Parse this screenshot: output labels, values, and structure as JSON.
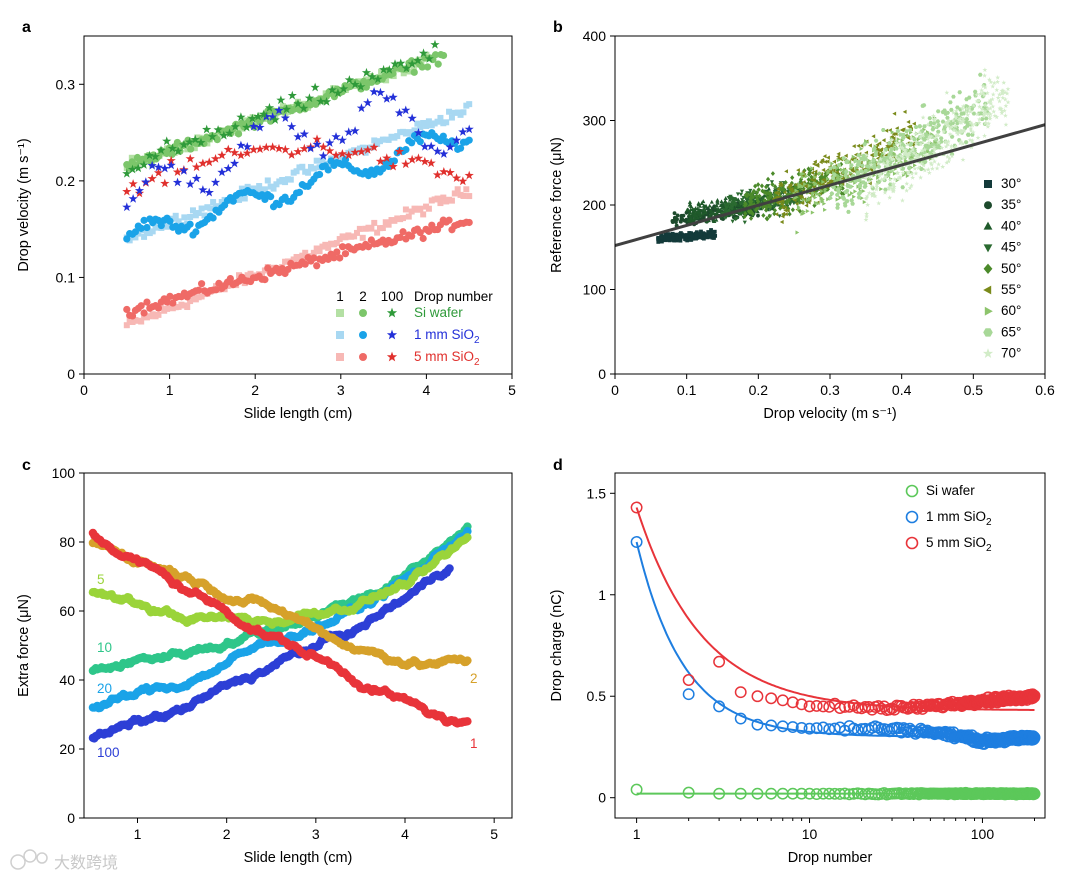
{
  "figure": {
    "watermark": "大数跨境",
    "colors": {
      "si_light": "#b4e0a4",
      "si_mid": "#7cc66b",
      "si_dark": "#2f9a3a",
      "sio2_1mm_light": "#a8d8f2",
      "sio2_1mm_mid": "#1aa3e8",
      "sio2_1mm_dark": "#2330d8",
      "sio2_5mm_light": "#f7b8b5",
      "sio2_5mm_mid": "#ef6a66",
      "sio2_5mm_dark": "#e0302d"
    }
  },
  "chart_data": [
    {
      "panel": "a",
      "type": "scatter",
      "xlabel": "Slide length (cm)",
      "ylabel": "Drop velocity (m s⁻¹)",
      "xlim": [
        0,
        5
      ],
      "ylim": [
        0,
        0.35
      ],
      "xticks": [
        0,
        1,
        2,
        3,
        4,
        5
      ],
      "yticks": [
        0,
        0.1,
        0.2,
        0.3
      ],
      "legend": {
        "header": [
          "1",
          "2",
          "100",
          "Drop number"
        ],
        "rows": [
          {
            "label": "Si wafer",
            "color": "#2f9a3a"
          },
          {
            "label": "1 mm SiO",
            "sub": "2",
            "color": "#2330d8"
          },
          {
            "label": "5 mm SiO",
            "sub": "2",
            "color": "#e0302d"
          }
        ],
        "placement": "bottom-right"
      },
      "series": [
        {
          "substrate": "Si wafer",
          "drop": "1",
          "marker": "square",
          "color": "#b4e0a4",
          "x": [
            0.5,
            4.0
          ],
          "y": [
            0.215,
            0.325
          ]
        },
        {
          "substrate": "Si wafer",
          "drop": "2",
          "marker": "circle",
          "color": "#7cc66b",
          "x": [
            0.5,
            4.2
          ],
          "y": [
            0.215,
            0.33
          ]
        },
        {
          "substrate": "Si wafer",
          "drop": "100",
          "marker": "star",
          "color": "#2f9a3a",
          "x": [
            0.5,
            4.1
          ],
          "y": [
            0.215,
            0.33
          ]
        },
        {
          "substrate": "1 mm SiO2",
          "drop": "1",
          "marker": "square",
          "color": "#a8d8f2",
          "x": [
            0.5,
            4.5
          ],
          "y": [
            0.14,
            0.275
          ]
        },
        {
          "substrate": "1 mm SiO2",
          "drop": "2",
          "marker": "circle",
          "color": "#1aa3e8",
          "x": [
            0.5,
            4.5
          ],
          "y": [
            0.14,
            0.25
          ]
        },
        {
          "substrate": "1 mm SiO2",
          "drop": "100",
          "marker": "star",
          "color": "#2330d8",
          "x": [
            0.5,
            4.5
          ],
          "y": [
            0.17,
            0.25
          ]
        },
        {
          "substrate": "5 mm SiO2",
          "drop": "1",
          "marker": "square",
          "color": "#f7b8b5",
          "x": [
            0.5,
            4.5
          ],
          "y": [
            0.05,
            0.19
          ]
        },
        {
          "substrate": "5 mm SiO2",
          "drop": "2",
          "marker": "circle",
          "color": "#ef6a66",
          "x": [
            0.5,
            4.5
          ],
          "y": [
            0.065,
            0.16
          ]
        },
        {
          "substrate": "5 mm SiO2",
          "drop": "100",
          "marker": "star",
          "color": "#e0302d",
          "x": [
            0.5,
            4.5
          ],
          "y": [
            0.19,
            0.21
          ]
        }
      ]
    },
    {
      "panel": "b",
      "type": "scatter",
      "xlabel": "Drop velocity (m s⁻¹)",
      "ylabel": "Reference force (μN)",
      "xlim": [
        0,
        0.6
      ],
      "ylim": [
        0,
        400
      ],
      "xticks": [
        0,
        0.1,
        0.2,
        0.3,
        0.4,
        0.5,
        0.6
      ],
      "yticks": [
        0,
        100,
        200,
        300,
        400
      ],
      "fit_line": {
        "x": [
          0,
          0.6
        ],
        "y": [
          152,
          295
        ],
        "color": "#404040"
      },
      "legend": {
        "placement": "right",
        "entries": [
          {
            "label": "30°",
            "marker": "square",
            "color": "#133a3a"
          },
          {
            "label": "35°",
            "marker": "circle",
            "color": "#1d4a2c"
          },
          {
            "label": "40°",
            "marker": "triangle-up",
            "color": "#1f5a2a"
          },
          {
            "label": "45°",
            "marker": "triangle-down",
            "color": "#2a6a30"
          },
          {
            "label": "50°",
            "marker": "diamond",
            "color": "#4b8a2a"
          },
          {
            "label": "55°",
            "marker": "triangle-left",
            "color": "#7a8a1a"
          },
          {
            "label": "60°",
            "marker": "triangle-right",
            "color": "#8dc46c"
          },
          {
            "label": "65°",
            "marker": "hexagon",
            "color": "#a8d898"
          },
          {
            "label": "70°",
            "marker": "star",
            "color": "#d2ecc8"
          }
        ]
      },
      "series": [
        {
          "angle": "30°",
          "x": [
            0.06,
            0.14
          ],
          "y": [
            160,
            165
          ]
        },
        {
          "angle": "35°",
          "x": [
            0.08,
            0.2
          ],
          "y": [
            182,
            198
          ]
        },
        {
          "angle": "40°",
          "x": [
            0.1,
            0.23
          ],
          "y": [
            190,
            205
          ]
        },
        {
          "angle": "45°",
          "x": [
            0.15,
            0.26
          ],
          "y": [
            195,
            215
          ]
        },
        {
          "angle": "50°",
          "x": [
            0.18,
            0.32
          ],
          "y": [
            200,
            230
          ]
        },
        {
          "angle": "55°",
          "x": [
            0.22,
            0.42
          ],
          "y": [
            205,
            285
          ]
        },
        {
          "angle": "60°",
          "x": [
            0.25,
            0.45
          ],
          "y": [
            205,
            275
          ]
        },
        {
          "angle": "65°",
          "x": [
            0.3,
            0.52
          ],
          "y": [
            215,
            320
          ]
        },
        {
          "angle": "70°",
          "x": [
            0.35,
            0.55
          ],
          "y": [
            220,
            330
          ]
        }
      ]
    },
    {
      "panel": "c",
      "type": "scatter",
      "xlabel": "Slide length (cm)",
      "ylabel": "Extra force (μN)",
      "xlim": [
        0.4,
        5.2
      ],
      "ylim": [
        0,
        100
      ],
      "xticks": [
        1,
        2,
        3,
        4,
        5
      ],
      "yticks": [
        0,
        20,
        40,
        60,
        80,
        100
      ],
      "series": [
        {
          "name": "1",
          "color": "#e8343a",
          "x": [
            0.5,
            1.5,
            2.5,
            3.5,
            4.2,
            4.7
          ],
          "y": [
            82,
            67,
            53,
            40,
            31,
            26
          ]
        },
        {
          "name": "2",
          "color": "#d6a12a",
          "x": [
            0.5,
            1.5,
            2.5,
            3.5,
            4.2,
            4.7
          ],
          "y": [
            80,
            71,
            61,
            49,
            45,
            45
          ]
        },
        {
          "name": "5",
          "color": "#9ad43a",
          "x": [
            0.5,
            1.5,
            2.5,
            3.5,
            4.2,
            4.7
          ],
          "y": [
            65,
            58,
            57,
            63,
            70,
            80
          ]
        },
        {
          "name": "10",
          "color": "#2ec68a",
          "x": [
            0.5,
            1.5,
            2.5,
            3.5,
            4.2,
            4.7
          ],
          "y": [
            43,
            48,
            55,
            64,
            73,
            85
          ]
        },
        {
          "name": "20",
          "color": "#1aa3e8",
          "x": [
            0.5,
            1.5,
            2.5,
            3.5,
            4.2,
            4.7
          ],
          "y": [
            32,
            39,
            51,
            61,
            72,
            84
          ]
        },
        {
          "name": "100",
          "color": "#2d3fd6",
          "x": [
            0.5,
            1.5,
            2.5,
            3.5,
            4.2,
            4.5
          ],
          "y": [
            23,
            31,
            44,
            55,
            67,
            74
          ]
        }
      ]
    },
    {
      "panel": "d",
      "type": "scatter",
      "xlabel": "Drop number",
      "ylabel": "Drop charge (nC)",
      "xscale": "log",
      "xlim": [
        0.75,
        230
      ],
      "ylim": [
        -0.1,
        1.6
      ],
      "xticks": [
        1,
        10,
        100
      ],
      "yticks": [
        0,
        0.5,
        1.0,
        1.5
      ],
      "legend": {
        "placement": "top-right",
        "entries": [
          {
            "label": "Si wafer",
            "color": "#5cc85a"
          },
          {
            "label": "1 mm SiO",
            "sub": "2",
            "color": "#1e7ee0"
          },
          {
            "label": "5 mm SiO",
            "sub": "2",
            "color": "#e8343a"
          }
        ]
      },
      "series": [
        {
          "name": "Si wafer",
          "color": "#5cc85a",
          "x": [
            1,
            2,
            3,
            10,
            100,
            200
          ],
          "y": [
            0.04,
            0.025,
            0.02,
            0.02,
            0.02,
            0.02
          ],
          "fit": {
            "model": "const",
            "y": 0.02
          }
        },
        {
          "name": "1 mm SiO2",
          "color": "#1e7ee0",
          "x": [
            1,
            2,
            3,
            4,
            5,
            10,
            30,
            100,
            200
          ],
          "y": [
            1.26,
            0.51,
            0.45,
            0.39,
            0.36,
            0.34,
            0.34,
            0.28,
            0.3
          ],
          "fit": {
            "model": "power",
            "a": 0.3,
            "b": 0.96,
            "p": 1.6
          }
        },
        {
          "name": "5 mm SiO2",
          "color": "#e8343a",
          "x": [
            1,
            2,
            3,
            4,
            5,
            10,
            30,
            100,
            200
          ],
          "y": [
            1.43,
            0.58,
            0.67,
            0.52,
            0.5,
            0.45,
            0.44,
            0.48,
            0.5
          ],
          "fit": {
            "model": "power",
            "a": 0.43,
            "b": 1.0,
            "p": 1.15
          }
        }
      ]
    }
  ]
}
